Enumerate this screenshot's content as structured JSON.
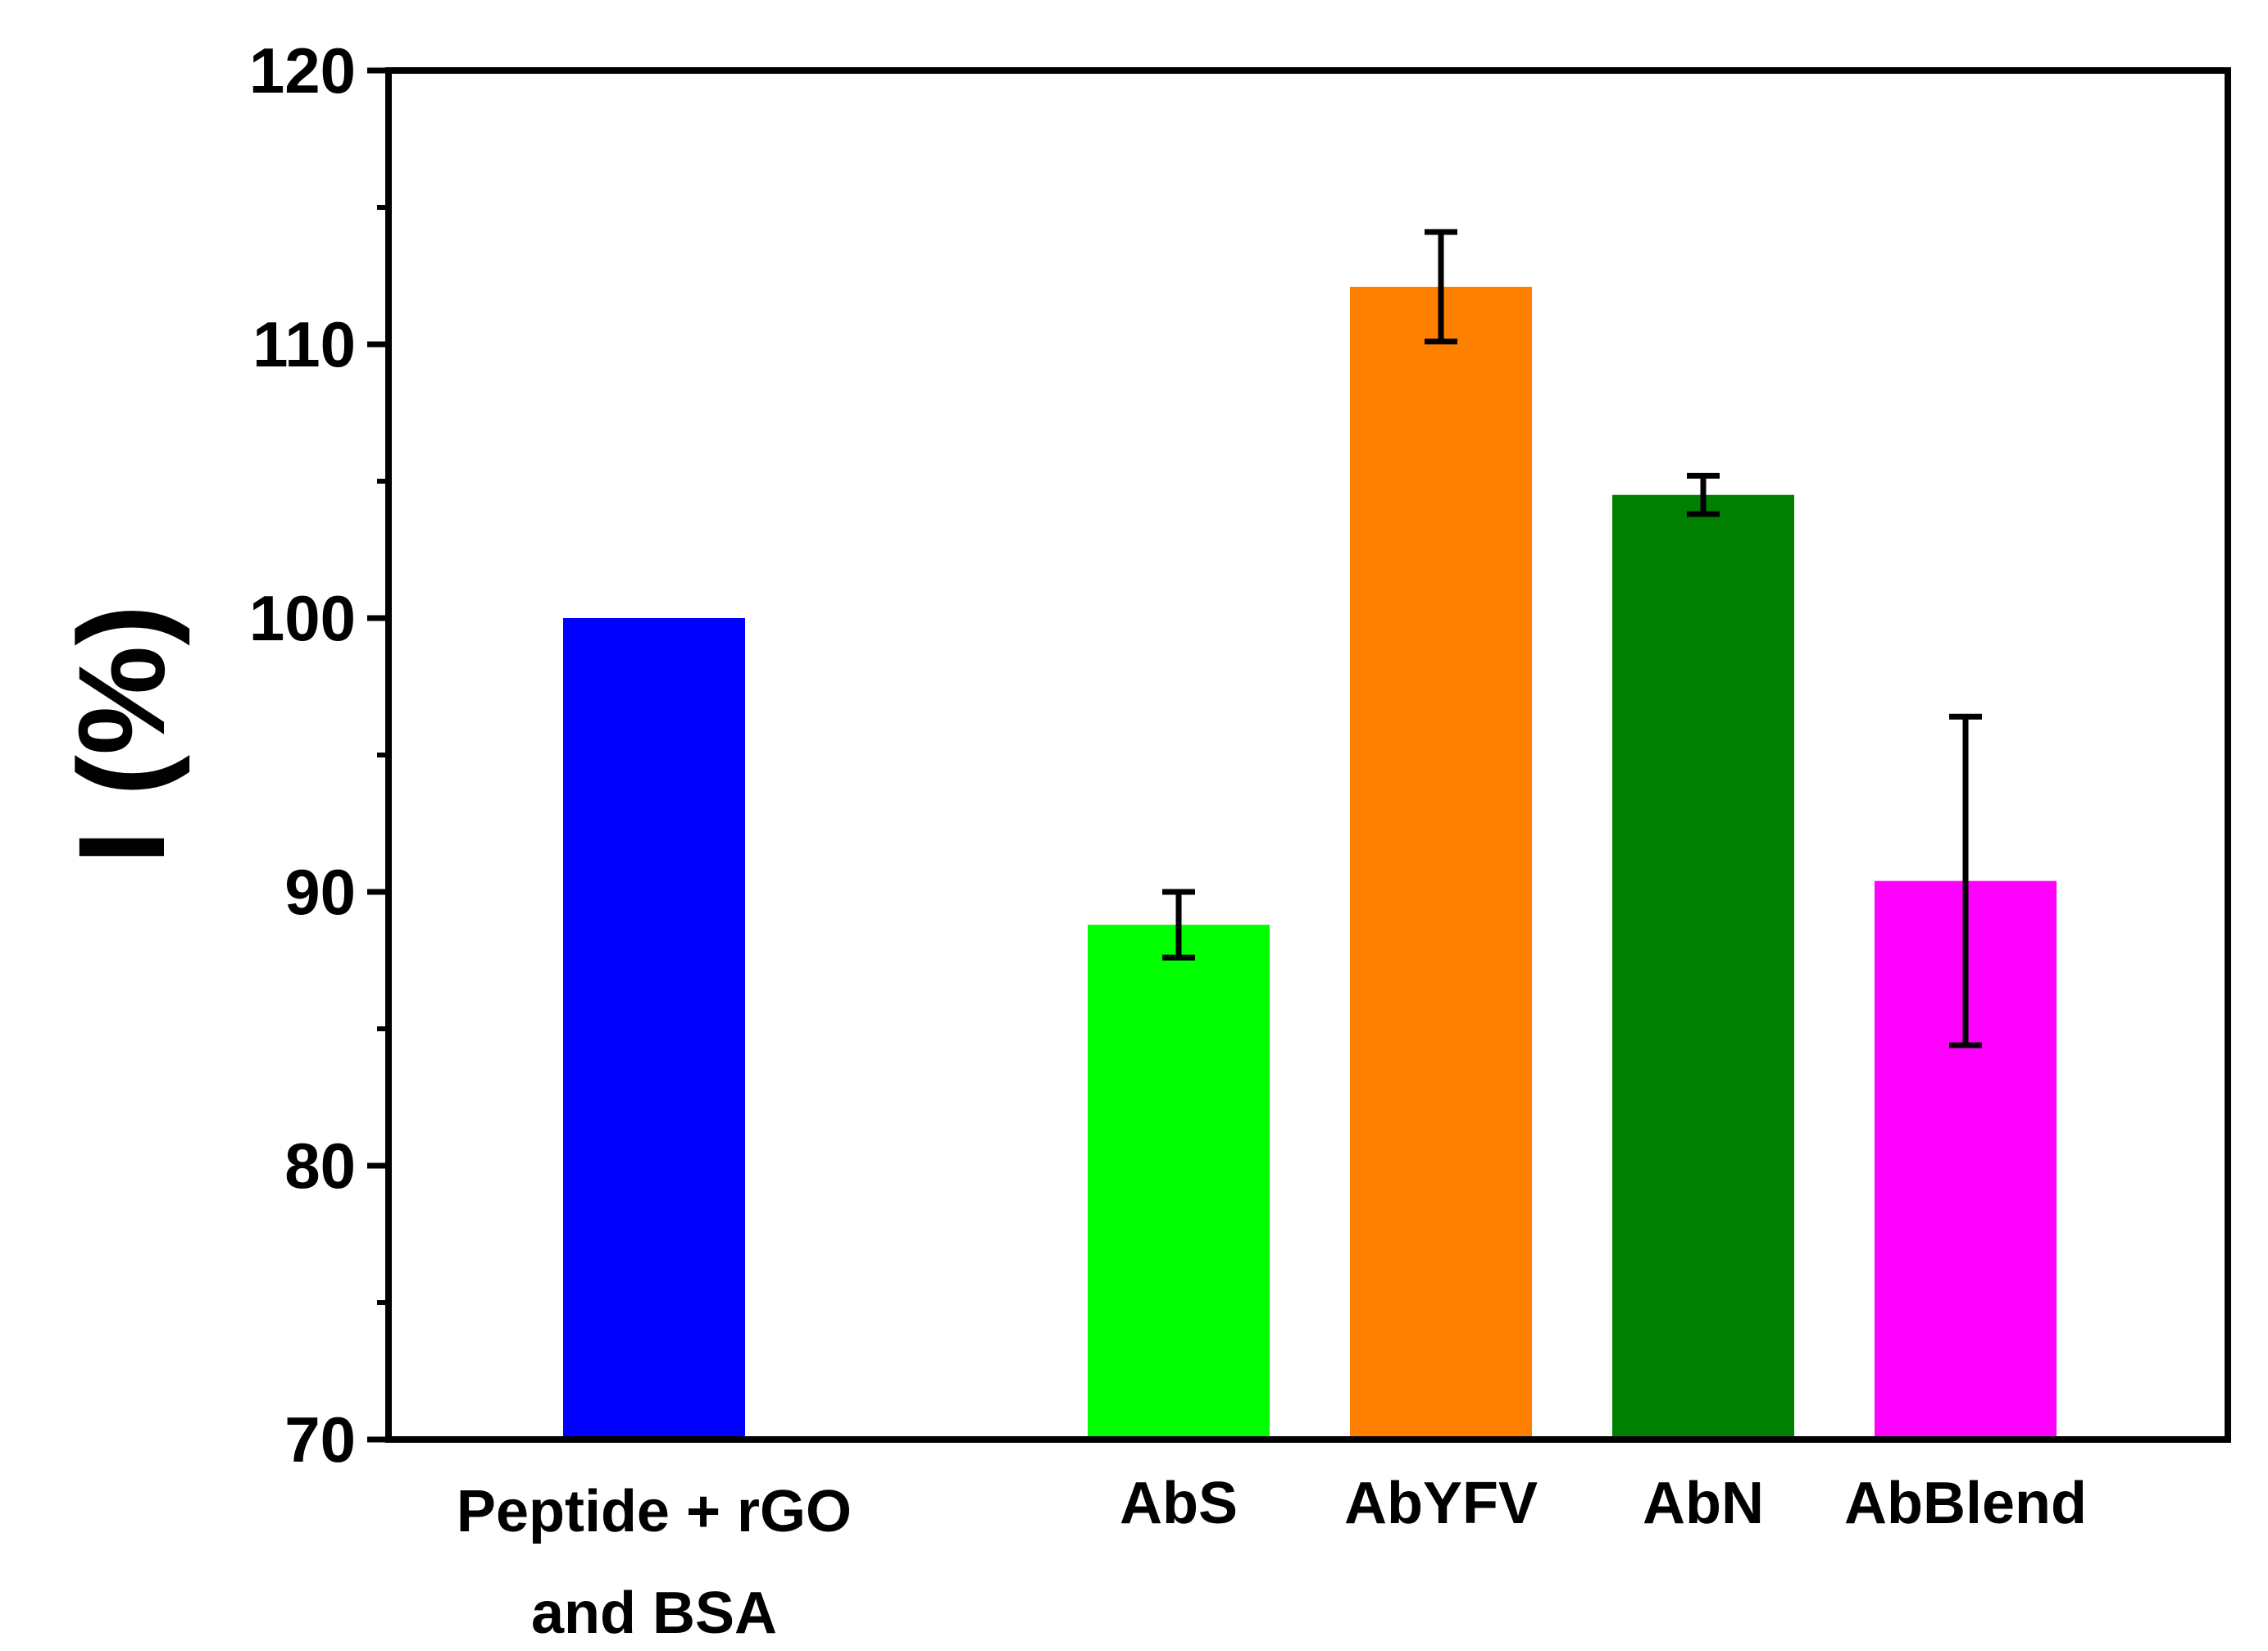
{
  "chart_data": {
    "type": "bar",
    "title": "",
    "xlabel": "",
    "ylabel": "I (%)",
    "ylim": [
      70,
      120
    ],
    "yticks": [
      70,
      80,
      90,
      100,
      110,
      120
    ],
    "minor_tick_step": 5,
    "grid": false,
    "categories": [
      {
        "lines": [
          "Peptide + rGO",
          "and BSA"
        ],
        "value": 100,
        "error": null,
        "color": "#0000ff",
        "slot": 0
      },
      {
        "lines": [
          "AbS"
        ],
        "value": 88.8,
        "error": 1.2,
        "color": "#00ff00",
        "slot": 2
      },
      {
        "lines": [
          "AbYFV"
        ],
        "value": 112.1,
        "error": 2.0,
        "color": "#ff8000",
        "slot": 3
      },
      {
        "lines": [
          "AbN"
        ],
        "value": 104.5,
        "error": 0.7,
        "color": "#008000",
        "slot": 4
      },
      {
        "lines": [
          "AbBlend"
        ],
        "value": 90.4,
        "error": 6.0,
        "color": "#ff00ff",
        "slot": 5
      }
    ]
  }
}
